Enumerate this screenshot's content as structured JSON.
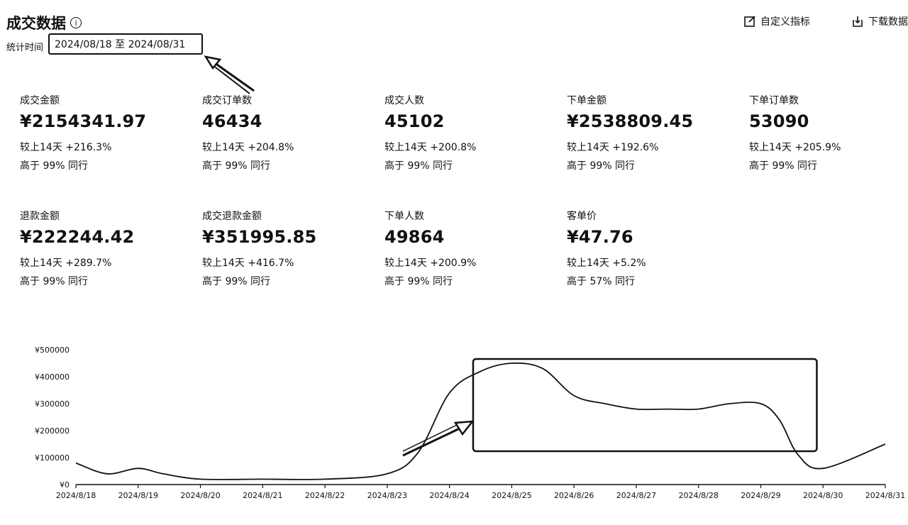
{
  "header": {
    "title": "成交数据",
    "info_glyph": "i",
    "period_label": "统计时间",
    "date_range": "2024/08/18 至 2024/08/31",
    "actions": [
      {
        "label": "自定义指标",
        "icon": "edit-icon"
      },
      {
        "label": "下载数据",
        "icon": "download-icon"
      }
    ]
  },
  "metrics_row1": [
    {
      "label": "成交金额",
      "value": "¥2154341.97",
      "change": "较上14天 +216.3%",
      "rank": "高于 99% 同行"
    },
    {
      "label": "成交订单数",
      "value": "46434",
      "change": "较上14天 +204.8%",
      "rank": "高于 99% 同行"
    },
    {
      "label": "成交人数",
      "value": "45102",
      "change": "较上14天 +200.8%",
      "rank": "高于 99% 同行"
    },
    {
      "label": "下单金额",
      "value": "¥2538809.45",
      "change": "较上14天 +192.6%",
      "rank": "高于 99% 同行"
    },
    {
      "label": "下单订单数",
      "value": "53090",
      "change": "较上14天 +205.9%",
      "rank": "高于 99% 同行"
    }
  ],
  "metrics_row2": [
    {
      "label": "退款金额",
      "value": "¥222244.42",
      "change": "较上14天 +289.7%",
      "rank": "高于 99% 同行"
    },
    {
      "label": "成交退款金额",
      "value": "¥351995.85",
      "change": "较上14天 +416.7%",
      "rank": "高于 99% 同行"
    },
    {
      "label": "下单人数",
      "value": "49864",
      "change": "较上14天 +200.9%",
      "rank": "高于 99% 同行"
    },
    {
      "label": "客单价",
      "value": "¥47.76",
      "change": "较上14天 +5.2%",
      "rank": "高于 57% 同行"
    }
  ],
  "chart_data": {
    "type": "line",
    "title": "",
    "xlabel": "",
    "ylabel": "",
    "categories": [
      "2024/8/18",
      "2024/8/19",
      "2024/8/20",
      "2024/8/21",
      "2024/8/22",
      "2024/8/23",
      "2024/8/24",
      "2024/8/25",
      "2024/8/26",
      "2024/8/27",
      "2024/8/28",
      "2024/8/29",
      "2024/8/30",
      "2024/8/31"
    ],
    "x": [
      0,
      0.5,
      1,
      1.4,
      2,
      3,
      4,
      5,
      5.5,
      6,
      6.5,
      7,
      7.5,
      8,
      8.5,
      9,
      9.5,
      10,
      10.5,
      11,
      11.3,
      11.6,
      12,
      13
    ],
    "y": [
      80000,
      40000,
      60000,
      40000,
      20000,
      20000,
      20000,
      40000,
      120000,
      340000,
      420000,
      450000,
      430000,
      330000,
      300000,
      280000,
      280000,
      280000,
      300000,
      300000,
      240000,
      110000,
      60000,
      150000
    ],
    "y_ticks": [
      0,
      100000,
      200000,
      300000,
      400000,
      500000
    ],
    "y_tick_labels": [
      "¥0",
      "¥100000",
      "¥200000",
      "¥300000",
      "¥400000",
      "¥500000"
    ],
    "ylim": [
      0,
      500000
    ],
    "grid": false,
    "annotation": "highlight box around 2024/8/24 – 2024/8/30 peak"
  }
}
